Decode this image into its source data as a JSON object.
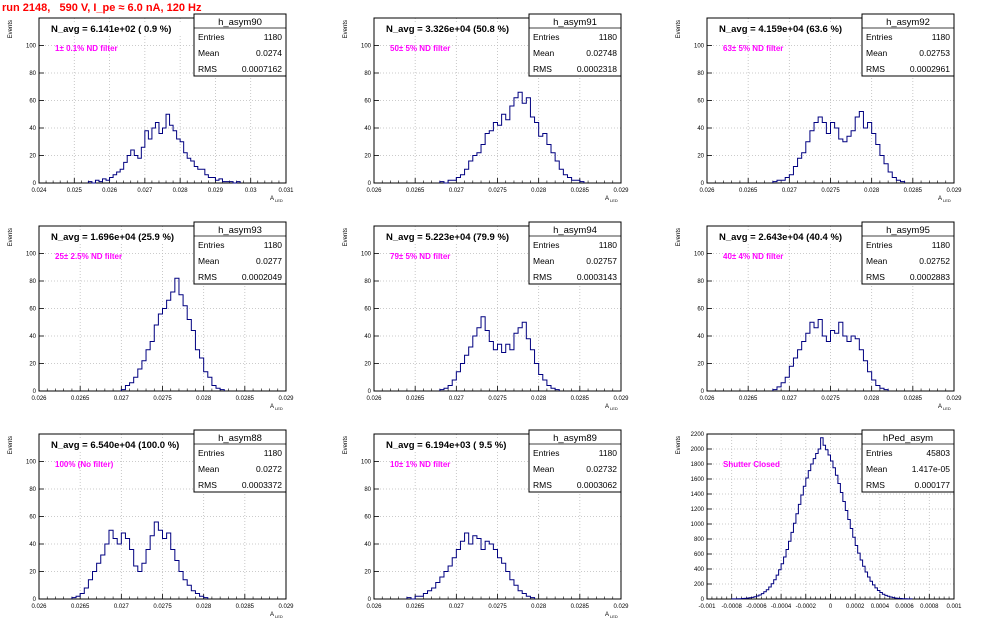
{
  "page": {
    "title": "run 2148,   590 V, I_pe ≈ 6.0 nA, 120 Hz"
  },
  "colors": {
    "title": "#ff0000",
    "annotation": "#ff00ff",
    "histogram_line": "#000080",
    "grid": "#bbbbbb"
  },
  "chart_data": [
    {
      "name": "h_asym90",
      "type": "histogram",
      "title": "N_avg = 6.141e+02 ( 0.9 %)",
      "annotation": "1± 0.1% ND filter",
      "stats": [
        [
          "Entries",
          "1180"
        ],
        [
          "Mean",
          "0.0274"
        ],
        [
          "RMS",
          "0.0007162"
        ]
      ],
      "ylabel": "Events",
      "xlabel": "A",
      "xlabel_sub": "LED",
      "xlim": [
        0.024,
        0.031
      ],
      "ylim": [
        0,
        120
      ],
      "xticks": [
        0.024,
        0.025,
        0.026,
        0.027,
        0.028,
        0.029,
        0.03,
        0.031
      ],
      "xtick_labels": [
        "0.024",
        "0.025",
        "0.026",
        "0.027",
        "0.028",
        "0.029",
        "0.03",
        "0.031"
      ],
      "yticks": [
        0,
        20,
        40,
        60,
        80,
        100,
        120
      ],
      "ytick_labels": [
        "0",
        "20",
        "40",
        "60",
        "80",
        "100",
        ""
      ],
      "bins": {
        "start": 0.0254,
        "width": 0.0001,
        "counts": [
          1,
          0,
          2,
          1,
          3,
          2,
          4,
          6,
          8,
          10,
          15,
          20,
          24,
          20,
          18,
          26,
          38,
          32,
          40,
          44,
          36,
          40,
          50,
          42,
          38,
          32,
          30,
          22,
          18,
          16,
          12,
          10,
          10,
          6,
          4,
          4,
          2,
          3,
          1,
          1,
          1,
          0,
          1
        ]
      }
    },
    {
      "name": "h_asym91",
      "type": "histogram",
      "title": "N_avg = 3.326e+04 (50.8 %)",
      "annotation": "50± 5% ND filter",
      "stats": [
        [
          "Entries",
          "1180"
        ],
        [
          "Mean",
          "0.02748"
        ],
        [
          "RMS",
          "0.0002318"
        ]
      ],
      "ylabel": "Events",
      "xlabel": "A",
      "xlabel_sub": "LED",
      "xlim": [
        0.026,
        0.029
      ],
      "ylim": [
        0,
        120
      ],
      "xticks": [
        0.026,
        0.0265,
        0.027,
        0.0275,
        0.028,
        0.0285,
        0.029
      ],
      "xtick_labels": [
        "0.026",
        "0.0265",
        "0.027",
        "0.0275",
        "0.028",
        "0.0285",
        "0.029"
      ],
      "yticks": [
        0,
        20,
        40,
        60,
        80,
        100,
        120
      ],
      "ytick_labels": [
        "0",
        "20",
        "40",
        "60",
        "80",
        "100",
        ""
      ],
      "bins": {
        "start": 0.0268,
        "width": 5e-05,
        "counts": [
          1,
          0,
          2,
          2,
          4,
          6,
          10,
          16,
          20,
          22,
          28,
          36,
          38,
          44,
          42,
          50,
          46,
          56,
          62,
          66,
          58,
          62,
          48,
          44,
          34,
          36,
          28,
          22,
          16,
          10,
          6,
          4,
          2,
          2,
          1
        ]
      }
    },
    {
      "name": "h_asym92",
      "type": "histogram",
      "title": "N_avg = 4.159e+04 (63.6 %)",
      "annotation": "63± 5% ND filter",
      "stats": [
        [
          "Entries",
          "1180"
        ],
        [
          "Mean",
          "0.02753"
        ],
        [
          "RMS",
          "0.0002961"
        ]
      ],
      "ylabel": "Events",
      "xlabel": "A",
      "xlabel_sub": "LED",
      "xlim": [
        0.026,
        0.029
      ],
      "ylim": [
        0,
        120
      ],
      "xticks": [
        0.026,
        0.0265,
        0.027,
        0.0275,
        0.028,
        0.0285,
        0.029
      ],
      "xtick_labels": [
        "0.026",
        "0.0265",
        "0.027",
        "0.0275",
        "0.028",
        "0.0285",
        "0.029"
      ],
      "yticks": [
        0,
        20,
        40,
        60,
        80,
        100,
        120
      ],
      "ytick_labels": [
        "0",
        "20",
        "40",
        "60",
        "80",
        "100",
        ""
      ],
      "bins": {
        "start": 0.0268,
        "width": 5e-05,
        "counts": [
          1,
          2,
          2,
          4,
          6,
          12,
          18,
          22,
          30,
          38,
          44,
          48,
          44,
          36,
          44,
          40,
          32,
          30,
          34,
          38,
          48,
          52,
          40,
          44,
          36,
          28,
          20,
          14,
          8,
          4,
          2,
          1
        ]
      }
    },
    {
      "name": "h_asym93",
      "type": "histogram",
      "title": "N_avg = 1.696e+04 (25.9 %)",
      "annotation": "25± 2.5% ND filter",
      "stats": [
        [
          "Entries",
          "1180"
        ],
        [
          "Mean",
          "0.0277"
        ],
        [
          "RMS",
          "0.0002049"
        ]
      ],
      "ylabel": "Events",
      "xlabel": "A",
      "xlabel_sub": "LED",
      "xlim": [
        0.026,
        0.029
      ],
      "ylim": [
        0,
        120
      ],
      "xticks": [
        0.026,
        0.0265,
        0.027,
        0.0275,
        0.028,
        0.0285,
        0.029
      ],
      "xtick_labels": [
        "0.026",
        "0.0265",
        "0.027",
        "0.0275",
        "0.028",
        "0.0285",
        "0.029"
      ],
      "yticks": [
        0,
        20,
        40,
        60,
        80,
        100,
        120
      ],
      "ytick_labels": [
        "0",
        "20",
        "40",
        "60",
        "80",
        "100",
        ""
      ],
      "bins": {
        "start": 0.027,
        "width": 5e-05,
        "counts": [
          1,
          4,
          6,
          10,
          16,
          22,
          30,
          36,
          48,
          56,
          60,
          66,
          72,
          82,
          70,
          62,
          52,
          44,
          30,
          24,
          14,
          10,
          4,
          2,
          1
        ]
      }
    },
    {
      "name": "h_asym94",
      "type": "histogram",
      "title": "N_avg = 5.223e+04 (79.9 %)",
      "annotation": "79± 5% ND filter",
      "stats": [
        [
          "Entries",
          "1180"
        ],
        [
          "Mean",
          "0.02757"
        ],
        [
          "RMS",
          "0.0003143"
        ]
      ],
      "ylabel": "Events",
      "xlabel": "A",
      "xlabel_sub": "LED",
      "xlim": [
        0.026,
        0.029
      ],
      "ylim": [
        0,
        120
      ],
      "xticks": [
        0.026,
        0.0265,
        0.027,
        0.0275,
        0.028,
        0.0285,
        0.029
      ],
      "xtick_labels": [
        "0.026",
        "0.0265",
        "0.027",
        "0.0275",
        "0.028",
        "0.0285",
        "0.029"
      ],
      "yticks": [
        0,
        20,
        40,
        60,
        80,
        100,
        120
      ],
      "ytick_labels": [
        "0",
        "20",
        "40",
        "60",
        "80",
        "100",
        ""
      ],
      "bins": {
        "start": 0.0268,
        "width": 5e-05,
        "counts": [
          1,
          2,
          4,
          8,
          14,
          20,
          26,
          32,
          40,
          46,
          54,
          44,
          36,
          30,
          34,
          28,
          34,
          30,
          42,
          46,
          50,
          38,
          30,
          20,
          12,
          8,
          4,
          2,
          1
        ]
      }
    },
    {
      "name": "h_asym95",
      "type": "histogram",
      "title": "N_avg = 2.643e+04 (40.4 %)",
      "annotation": "40± 4% ND filter",
      "stats": [
        [
          "Entries",
          "1180"
        ],
        [
          "Mean",
          "0.02752"
        ],
        [
          "RMS",
          "0.0002883"
        ]
      ],
      "ylabel": "Events",
      "xlabel": "A",
      "xlabel_sub": "LED",
      "xlim": [
        0.026,
        0.029
      ],
      "ylim": [
        0,
        120
      ],
      "xticks": [
        0.026,
        0.0265,
        0.027,
        0.0275,
        0.028,
        0.0285,
        0.029
      ],
      "xtick_labels": [
        "0.026",
        "0.0265",
        "0.027",
        "0.0275",
        "0.028",
        "0.0285",
        "0.029"
      ],
      "yticks": [
        0,
        20,
        40,
        60,
        80,
        100,
        120
      ],
      "ytick_labels": [
        "0",
        "20",
        "40",
        "60",
        "80",
        "100",
        ""
      ],
      "bins": {
        "start": 0.0268,
        "width": 5e-05,
        "counts": [
          1,
          3,
          6,
          10,
          18,
          24,
          30,
          36,
          42,
          50,
          46,
          52,
          40,
          36,
          44,
          42,
          50,
          40,
          36,
          40,
          38,
          30,
          22,
          14,
          8,
          4,
          2,
          1
        ]
      }
    },
    {
      "name": "h_asym88",
      "type": "histogram",
      "title": "N_avg = 6.540e+04 (100.0 %)",
      "annotation": "100% (No filter)",
      "stats": [
        [
          "Entries",
          "1180"
        ],
        [
          "Mean",
          "0.0272"
        ],
        [
          "RMS",
          "0.0003372"
        ]
      ],
      "ylabel": "Events",
      "xlabel": "A",
      "xlabel_sub": "LED",
      "xlim": [
        0.026,
        0.029
      ],
      "ylim": [
        0,
        120
      ],
      "xticks": [
        0.026,
        0.0265,
        0.027,
        0.0275,
        0.028,
        0.0285,
        0.029
      ],
      "xtick_labels": [
        "0.026",
        "0.0265",
        "0.027",
        "0.0275",
        "0.028",
        "0.0285",
        "0.029"
      ],
      "yticks": [
        0,
        20,
        40,
        60,
        80,
        100,
        120
      ],
      "ytick_labels": [
        "0",
        "20",
        "40",
        "60",
        "80",
        "100",
        ""
      ],
      "bins": {
        "start": 0.0264,
        "width": 5e-05,
        "counts": [
          1,
          2,
          4,
          8,
          14,
          20,
          26,
          32,
          40,
          50,
          44,
          40,
          48,
          44,
          36,
          24,
          20,
          26,
          36,
          46,
          56,
          50,
          44,
          48,
          36,
          28,
          20,
          14,
          10,
          6,
          4,
          2,
          1
        ]
      }
    },
    {
      "name": "h_asym89",
      "type": "histogram",
      "title": "N_avg = 6.194e+03 ( 9.5 %)",
      "annotation": "10± 1% ND filter",
      "stats": [
        [
          "Entries",
          "1180"
        ],
        [
          "Mean",
          "0.02732"
        ],
        [
          "RMS",
          "0.0003062"
        ]
      ],
      "ylabel": "Events",
      "xlabel": "A",
      "xlabel_sub": "LED",
      "xlim": [
        0.026,
        0.029
      ],
      "ylim": [
        0,
        120
      ],
      "xticks": [
        0.026,
        0.0265,
        0.027,
        0.0275,
        0.028,
        0.0285,
        0.029
      ],
      "xtick_labels": [
        "0.026",
        "0.0265",
        "0.027",
        "0.0275",
        "0.028",
        "0.0285",
        "0.029"
      ],
      "yticks": [
        0,
        20,
        40,
        60,
        80,
        100,
        120
      ],
      "ytick_labels": [
        "0",
        "20",
        "40",
        "60",
        "80",
        "100",
        ""
      ],
      "bins": {
        "start": 0.0264,
        "width": 5e-05,
        "counts": [
          1,
          0,
          2,
          2,
          4,
          6,
          8,
          12,
          16,
          20,
          24,
          30,
          36,
          42,
          48,
          40,
          46,
          44,
          36,
          42,
          40,
          36,
          30,
          26,
          20,
          14,
          10,
          6,
          4,
          2,
          1
        ]
      }
    },
    {
      "name": "hPed_asym",
      "type": "histogram",
      "title": "",
      "annotation": "Shutter Closed",
      "stats": [
        [
          "Entries",
          "45803"
        ],
        [
          "Mean",
          "1.417e-05"
        ],
        [
          "RMS",
          "0.000177"
        ]
      ],
      "ylabel": "Events",
      "xlabel": "",
      "xlabel_sub": "",
      "xlim": [
        -0.001,
        0.001
      ],
      "ylim": [
        0,
        2200
      ],
      "xticks": [
        -0.001,
        -0.0008,
        -0.0006,
        -0.0004,
        -0.0002,
        0,
        0.0002,
        0.0004,
        0.0006,
        0.0008,
        0.001
      ],
      "xtick_labels": [
        "-0.001",
        "-0.0008",
        "-0.0006",
        "-0.0004",
        "-0.0002",
        "0",
        "0.0002",
        "0.0004",
        "0.0006",
        "0.0008",
        "0.001"
      ],
      "yticks": [
        0,
        200,
        400,
        600,
        800,
        1000,
        1200,
        1400,
        1600,
        1800,
        2000,
        2200
      ],
      "ytick_labels": [
        "0",
        "200",
        "400",
        "600",
        "800",
        "1000",
        "1200",
        "1400",
        "1600",
        "1800",
        "2000",
        "2200"
      ],
      "bins": {
        "start": -0.0008,
        "width": 2e-05,
        "counts": [
          1,
          2,
          3,
          4,
          6,
          8,
          12,
          16,
          22,
          30,
          40,
          54,
          72,
          96,
          124,
          160,
          204,
          256,
          318,
          390,
          470,
          560,
          660,
          770,
          888,
          1010,
          1136,
          1262,
          1386,
          1504,
          1614,
          1712,
          1800,
          1872,
          1940,
          2000,
          2150,
          2050,
          1990,
          1920,
          1840,
          1750,
          1650,
          1540,
          1420,
          1300,
          1180,
          1060,
          940,
          824,
          714,
          612,
          520,
          436,
          360,
          294,
          236,
          188,
          148,
          114,
          86,
          64,
          48,
          36,
          26,
          18,
          12,
          8,
          6,
          4,
          3,
          2,
          1
        ]
      }
    }
  ]
}
